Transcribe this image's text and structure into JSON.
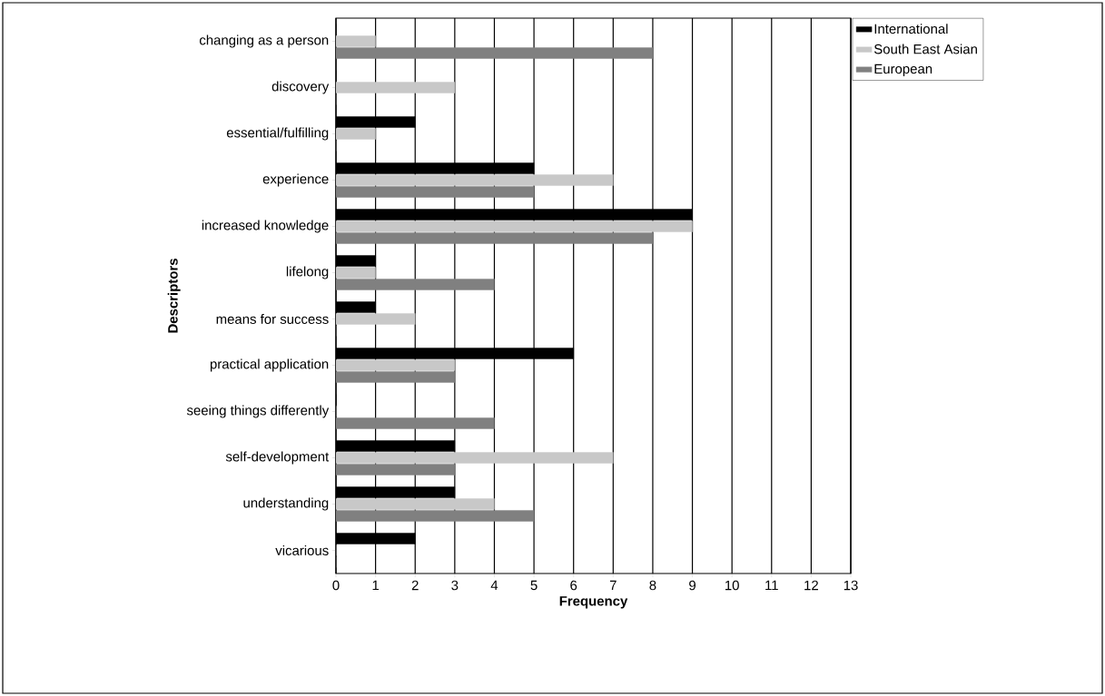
{
  "chart_data": {
    "type": "bar",
    "orientation": "horizontal",
    "xlabel": "Frequency",
    "ylabel": "Descriptors",
    "categories": [
      "changing as a person",
      "discovery",
      "essential/fulfilling",
      "experience",
      "increased knowledge",
      "lifelong",
      "means for success",
      "practical application",
      "seeing things differently",
      "self-development",
      "understanding",
      "vicarious"
    ],
    "series": [
      {
        "name": "International",
        "color": "#000000",
        "values": [
          0,
          0,
          2,
          5,
          9,
          1,
          1,
          6,
          0,
          3,
          3,
          2
        ]
      },
      {
        "name": "South East Asian",
        "color": "#c8c8c8",
        "values": [
          1,
          3,
          1,
          7,
          9,
          1,
          2,
          3,
          0,
          7,
          4,
          0
        ]
      },
      {
        "name": "European",
        "color": "#808080",
        "values": [
          8,
          0,
          0,
          5,
          8,
          4,
          0,
          3,
          4,
          3,
          5,
          0
        ]
      }
    ],
    "xlim": [
      0,
      13
    ],
    "xticks": [
      0,
      1,
      2,
      3,
      4,
      5,
      6,
      7,
      8,
      9,
      10,
      11,
      12,
      13
    ],
    "grid": "x",
    "legend": "top right"
  }
}
